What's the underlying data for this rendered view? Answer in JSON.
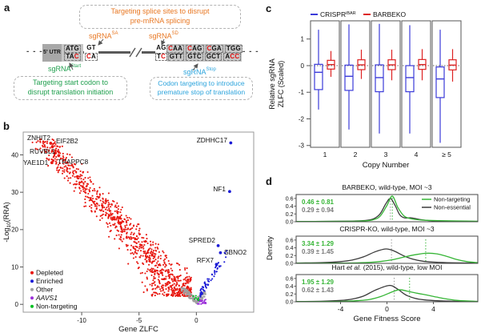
{
  "panels": {
    "a": "a",
    "b": "b",
    "c": "c",
    "d": "d"
  },
  "panel_a": {
    "splice_note": [
      "Targeting splice sites to disrupt",
      "pre-mRNA splicing"
    ],
    "start_note": [
      "Targeting start codon to",
      "disrupt translation initiation"
    ],
    "stop_note": [
      "Codon targeting to introduce",
      "premature stop of translation"
    ],
    "sgrna_sa": {
      "base": "sgRNA",
      "sup": "SA"
    },
    "sgrna_sd": {
      "base": "sgRNA",
      "sup": "SD"
    },
    "sgrna_start": {
      "base": "sgRNA",
      "sup": "Start"
    },
    "sgrna_stop": {
      "base": "sgRNA",
      "sup": "Stop"
    },
    "utr_label": "5' UTR",
    "dots_left": "- - -",
    "dots_right": "- - -",
    "sequences": {
      "start": {
        "top": "ATG",
        "bottom": "TAC",
        "red_top": [],
        "red_bottom": [
          2
        ],
        "box_top": true,
        "box_bottom": true
      },
      "donor": {
        "top": "GT",
        "bottom": "CA",
        "red_top": [],
        "red_bottom": [
          0
        ],
        "box_top": false,
        "box_bottom": true
      },
      "acceptor": {
        "top": "AG",
        "bottom": "TC",
        "red_top": [],
        "red_bottom": [
          1
        ],
        "box_top": false,
        "box_bottom": true
      },
      "stop_codons": {
        "top": [
          "CAA",
          "CAG",
          "CGA",
          "TGG"
        ],
        "bottom": [
          "GTT",
          "GTC",
          "GCT",
          "ACC"
        ],
        "red_top": [
          [
            0
          ],
          [
            0
          ],
          [
            0
          ],
          []
        ],
        "red_bottom": [
          [],
          [],
          [],
          [
            1,
            2
          ]
        ]
      }
    },
    "colors": {
      "orange": "#e87722",
      "green": "#21a04f",
      "blue": "#2ba3dc",
      "red_letter": "#e01010"
    }
  },
  "chart_data": [
    {
      "id": "panel_b",
      "type": "scatter",
      "xlabel": "Gene ZLFC",
      "ylabel_parts": {
        "pre": "-Log",
        "sub": "10",
        "post": "(RRA)"
      },
      "xlim": [
        -15.1,
        5.0
      ],
      "ylim": [
        -2.1,
        46.1
      ],
      "xticks": [
        -10,
        -5,
        0
      ],
      "yticks": [
        0,
        10,
        20,
        30,
        40
      ],
      "grid": false,
      "legend_position": "bottom-left",
      "legend": [
        {
          "label": "Depleted",
          "color": "#e8150d"
        },
        {
          "label": "Enriched",
          "color": "#1b1bd6"
        },
        {
          "label": "Other",
          "color": "#a0a0a0"
        },
        {
          "label": "AAVS1",
          "color": "#9b30d9",
          "italic": true
        },
        {
          "label": "Non-targeting",
          "color": "#00c020"
        }
      ],
      "labeled_points": [
        {
          "gene": "ZNHIT2",
          "x": -12.7,
          "y": 43.1,
          "group": "Depleted"
        },
        {
          "gene": "EIF2B2",
          "x": -12.55,
          "y": 42.2,
          "group": "Depleted"
        },
        {
          "gene": "RUVBL1",
          "x": -12.3,
          "y": 40.5,
          "group": "Depleted"
        },
        {
          "gene": "YAE1D1",
          "x": -12.6,
          "y": 37.9,
          "group": "Depleted"
        },
        {
          "gene": "TRAPPC8",
          "x": -12.0,
          "y": 39.8,
          "group": "Depleted"
        },
        {
          "gene": "ZDHHC17",
          "x": 3.0,
          "y": 43.2,
          "group": "Enriched"
        },
        {
          "gene": "NF1",
          "x": 2.9,
          "y": 30.2,
          "group": "Enriched"
        },
        {
          "gene": "SPRED2",
          "x": 1.9,
          "y": 15.7,
          "group": "Enriched"
        },
        {
          "gene": "SBNO2",
          "x": 2.1,
          "y": 13.8,
          "group": "Enriched"
        },
        {
          "gene": "RFX7",
          "x": 1.75,
          "y": 10.7,
          "group": "Enriched"
        }
      ],
      "cloud": {
        "seed": 17,
        "n_depleted": 1050,
        "n_enriched": 60,
        "n_other": 150,
        "n_aavs1": 26,
        "n_nontargeting": 8
      }
    },
    {
      "id": "panel_c",
      "type": "boxplot",
      "ylabel_lines": [
        "Relative sgRNA",
        "ZLFC (Scaled)"
      ],
      "xlabel": "Copy Number",
      "categories": [
        "1",
        "2",
        "3",
        "4",
        "≥ 5"
      ],
      "yticks": [
        1,
        0,
        -1,
        -2,
        -3
      ],
      "ylim": [
        -3.1,
        1.7
      ],
      "zero_line": 0,
      "legend": [
        {
          "label": "CRISPR",
          "sup": "iBAR",
          "color": "#3b3bd9"
        },
        {
          "label": "BARBEKO",
          "sup": "",
          "color": "#dd2222"
        }
      ],
      "series": [
        {
          "name": "CRISPR-iBAR",
          "color": "#3b3bd9",
          "boxes": [
            {
              "lo": -1.65,
              "q1": -0.9,
              "med": -0.25,
              "q3": 0.05,
              "hi": 1.35
            },
            {
              "lo": -2.4,
              "q1": -0.93,
              "med": -0.4,
              "q3": 0.02,
              "hi": 1.55
            },
            {
              "lo": -2.55,
              "q1": -0.98,
              "med": -0.45,
              "q3": 0.03,
              "hi": 1.57
            },
            {
              "lo": -2.55,
              "q1": -0.98,
              "med": -0.45,
              "q3": 0.0,
              "hi": 1.52
            },
            {
              "lo": -2.9,
              "q1": -1.2,
              "med": -0.5,
              "q3": -0.05,
              "hi": 1.35
            }
          ]
        },
        {
          "name": "BARBEKO",
          "color": "#dd2222",
          "boxes": [
            {
              "lo": -0.42,
              "q1": -0.13,
              "med": 0.04,
              "q3": 0.2,
              "hi": 0.55
            },
            {
              "lo": -0.5,
              "q1": -0.15,
              "med": 0.03,
              "q3": 0.22,
              "hi": 0.6
            },
            {
              "lo": -0.55,
              "q1": -0.15,
              "med": 0.03,
              "q3": 0.22,
              "hi": 0.6
            },
            {
              "lo": -0.55,
              "q1": -0.14,
              "med": 0.04,
              "q3": 0.23,
              "hi": 0.62
            },
            {
              "lo": -0.6,
              "q1": -0.16,
              "med": 0.02,
              "q3": 0.22,
              "hi": 0.62
            }
          ]
        }
      ]
    },
    {
      "id": "panel_d",
      "type": "line",
      "xlabel": "Gene Fitness Score",
      "ylabel": "Density",
      "xticks": [
        -4,
        0,
        4
      ],
      "yticks": [
        "0.0",
        "0.2",
        "0.4",
        "0.6"
      ],
      "xlim": [
        -7.83,
        7.83
      ],
      "ylim": [
        0,
        0.7
      ],
      "legend": [
        {
          "label": "Non-targeting",
          "color": "#35b535"
        },
        {
          "label": "Non-essential",
          "color": "#3a3a3a"
        }
      ],
      "subplots": [
        {
          "title_pre": "BARBEKO, wild-type, MOI ~3",
          "title_italic": "",
          "title_post": "",
          "green_stat": "0.46 ± 0.81",
          "gray_stat": "0.29 ± 0.94",
          "green_mean": 0.46,
          "gray_mean": 0.29,
          "gray_curve": [
            [
              -7.8,
              0.007
            ],
            [
              -5,
              0.01
            ],
            [
              -3,
              0.016
            ],
            [
              -2,
              0.03
            ],
            [
              -1.2,
              0.07
            ],
            [
              -0.6,
              0.2
            ],
            [
              -0.1,
              0.46
            ],
            [
              0.3,
              0.6
            ],
            [
              0.7,
              0.42
            ],
            [
              1.1,
              0.18
            ],
            [
              1.5,
              0.1
            ],
            [
              2.1,
              0.1
            ],
            [
              2.8,
              0.06
            ],
            [
              3.8,
              0.025
            ],
            [
              5.5,
              0.012
            ],
            [
              7.8,
              0.008
            ]
          ],
          "green_curve": [
            [
              -7.8,
              0.007
            ],
            [
              -5,
              0.009
            ],
            [
              -3,
              0.013
            ],
            [
              -2,
              0.022
            ],
            [
              -1.2,
              0.05
            ],
            [
              -0.6,
              0.14
            ],
            [
              0,
              0.42
            ],
            [
              0.46,
              0.66
            ],
            [
              0.95,
              0.36
            ],
            [
              1.5,
              0.14
            ],
            [
              2.2,
              0.07
            ],
            [
              3.2,
              0.04
            ],
            [
              4.5,
              0.028
            ],
            [
              6,
              0.02
            ],
            [
              7.8,
              0.013
            ]
          ]
        },
        {
          "title_pre": "CRISPR-KO, wild-type, MOI ~3",
          "title_italic": "",
          "title_post": "",
          "green_stat": "3.34 ± 1.29",
          "gray_stat": "0.39 ± 1.45",
          "green_mean": 3.34,
          "gray_mean": 0.39,
          "gray_curve": [
            [
              -7.8,
              0.008
            ],
            [
              -5.5,
              0.02
            ],
            [
              -4,
              0.045
            ],
            [
              -3,
              0.085
            ],
            [
              -2,
              0.17
            ],
            [
              -1,
              0.3
            ],
            [
              -0.1,
              0.37
            ],
            [
              0.6,
              0.32
            ],
            [
              1.4,
              0.2
            ],
            [
              2.2,
              0.11
            ],
            [
              3.2,
              0.05
            ],
            [
              4.5,
              0.025
            ],
            [
              6,
              0.012
            ],
            [
              7.8,
              0.007
            ]
          ],
          "green_curve": [
            [
              -7.8,
              0.004
            ],
            [
              -5,
              0.006
            ],
            [
              -3,
              0.01
            ],
            [
              -1.5,
              0.025
            ],
            [
              -0.5,
              0.05
            ],
            [
              0.5,
              0.095
            ],
            [
              1.5,
              0.165
            ],
            [
              2.5,
              0.225
            ],
            [
              3.4,
              0.26
            ],
            [
              4.3,
              0.245
            ],
            [
              5.2,
              0.175
            ],
            [
              6,
              0.1
            ],
            [
              6.9,
              0.045
            ],
            [
              7.8,
              0.018
            ]
          ]
        },
        {
          "title_pre": "Hart ",
          "title_italic": "et al.",
          "title_post": " (2015), wild-type, low MOI",
          "green_stat": "1.95 ± 1.29",
          "gray_stat": "0.62 ± 1.43",
          "green_mean": 1.95,
          "gray_mean": 0.62,
          "gray_curve": [
            [
              -7.8,
              0.006
            ],
            [
              -5.5,
              0.015
            ],
            [
              -4,
              0.035
            ],
            [
              -3,
              0.07
            ],
            [
              -2,
              0.15
            ],
            [
              -1,
              0.3
            ],
            [
              0.2,
              0.42
            ],
            [
              0.9,
              0.33
            ],
            [
              1.6,
              0.18
            ],
            [
              2.4,
              0.09
            ],
            [
              3.2,
              0.05
            ],
            [
              4.5,
              0.024
            ],
            [
              6,
              0.012
            ],
            [
              7.8,
              0.006
            ]
          ],
          "green_curve": [
            [
              -7.8,
              0.004
            ],
            [
              -5,
              0.008
            ],
            [
              -3.5,
              0.015
            ],
            [
              -2.5,
              0.03
            ],
            [
              -1.5,
              0.06
            ],
            [
              -0.5,
              0.14
            ],
            [
              0.5,
              0.26
            ],
            [
              1.1,
              0.31
            ],
            [
              1.8,
              0.27
            ],
            [
              2.6,
              0.22
            ],
            [
              3.5,
              0.17
            ],
            [
              4.3,
              0.12
            ],
            [
              5.2,
              0.07
            ],
            [
              6.2,
              0.032
            ],
            [
              7.8,
              0.01
            ]
          ]
        }
      ]
    }
  ]
}
